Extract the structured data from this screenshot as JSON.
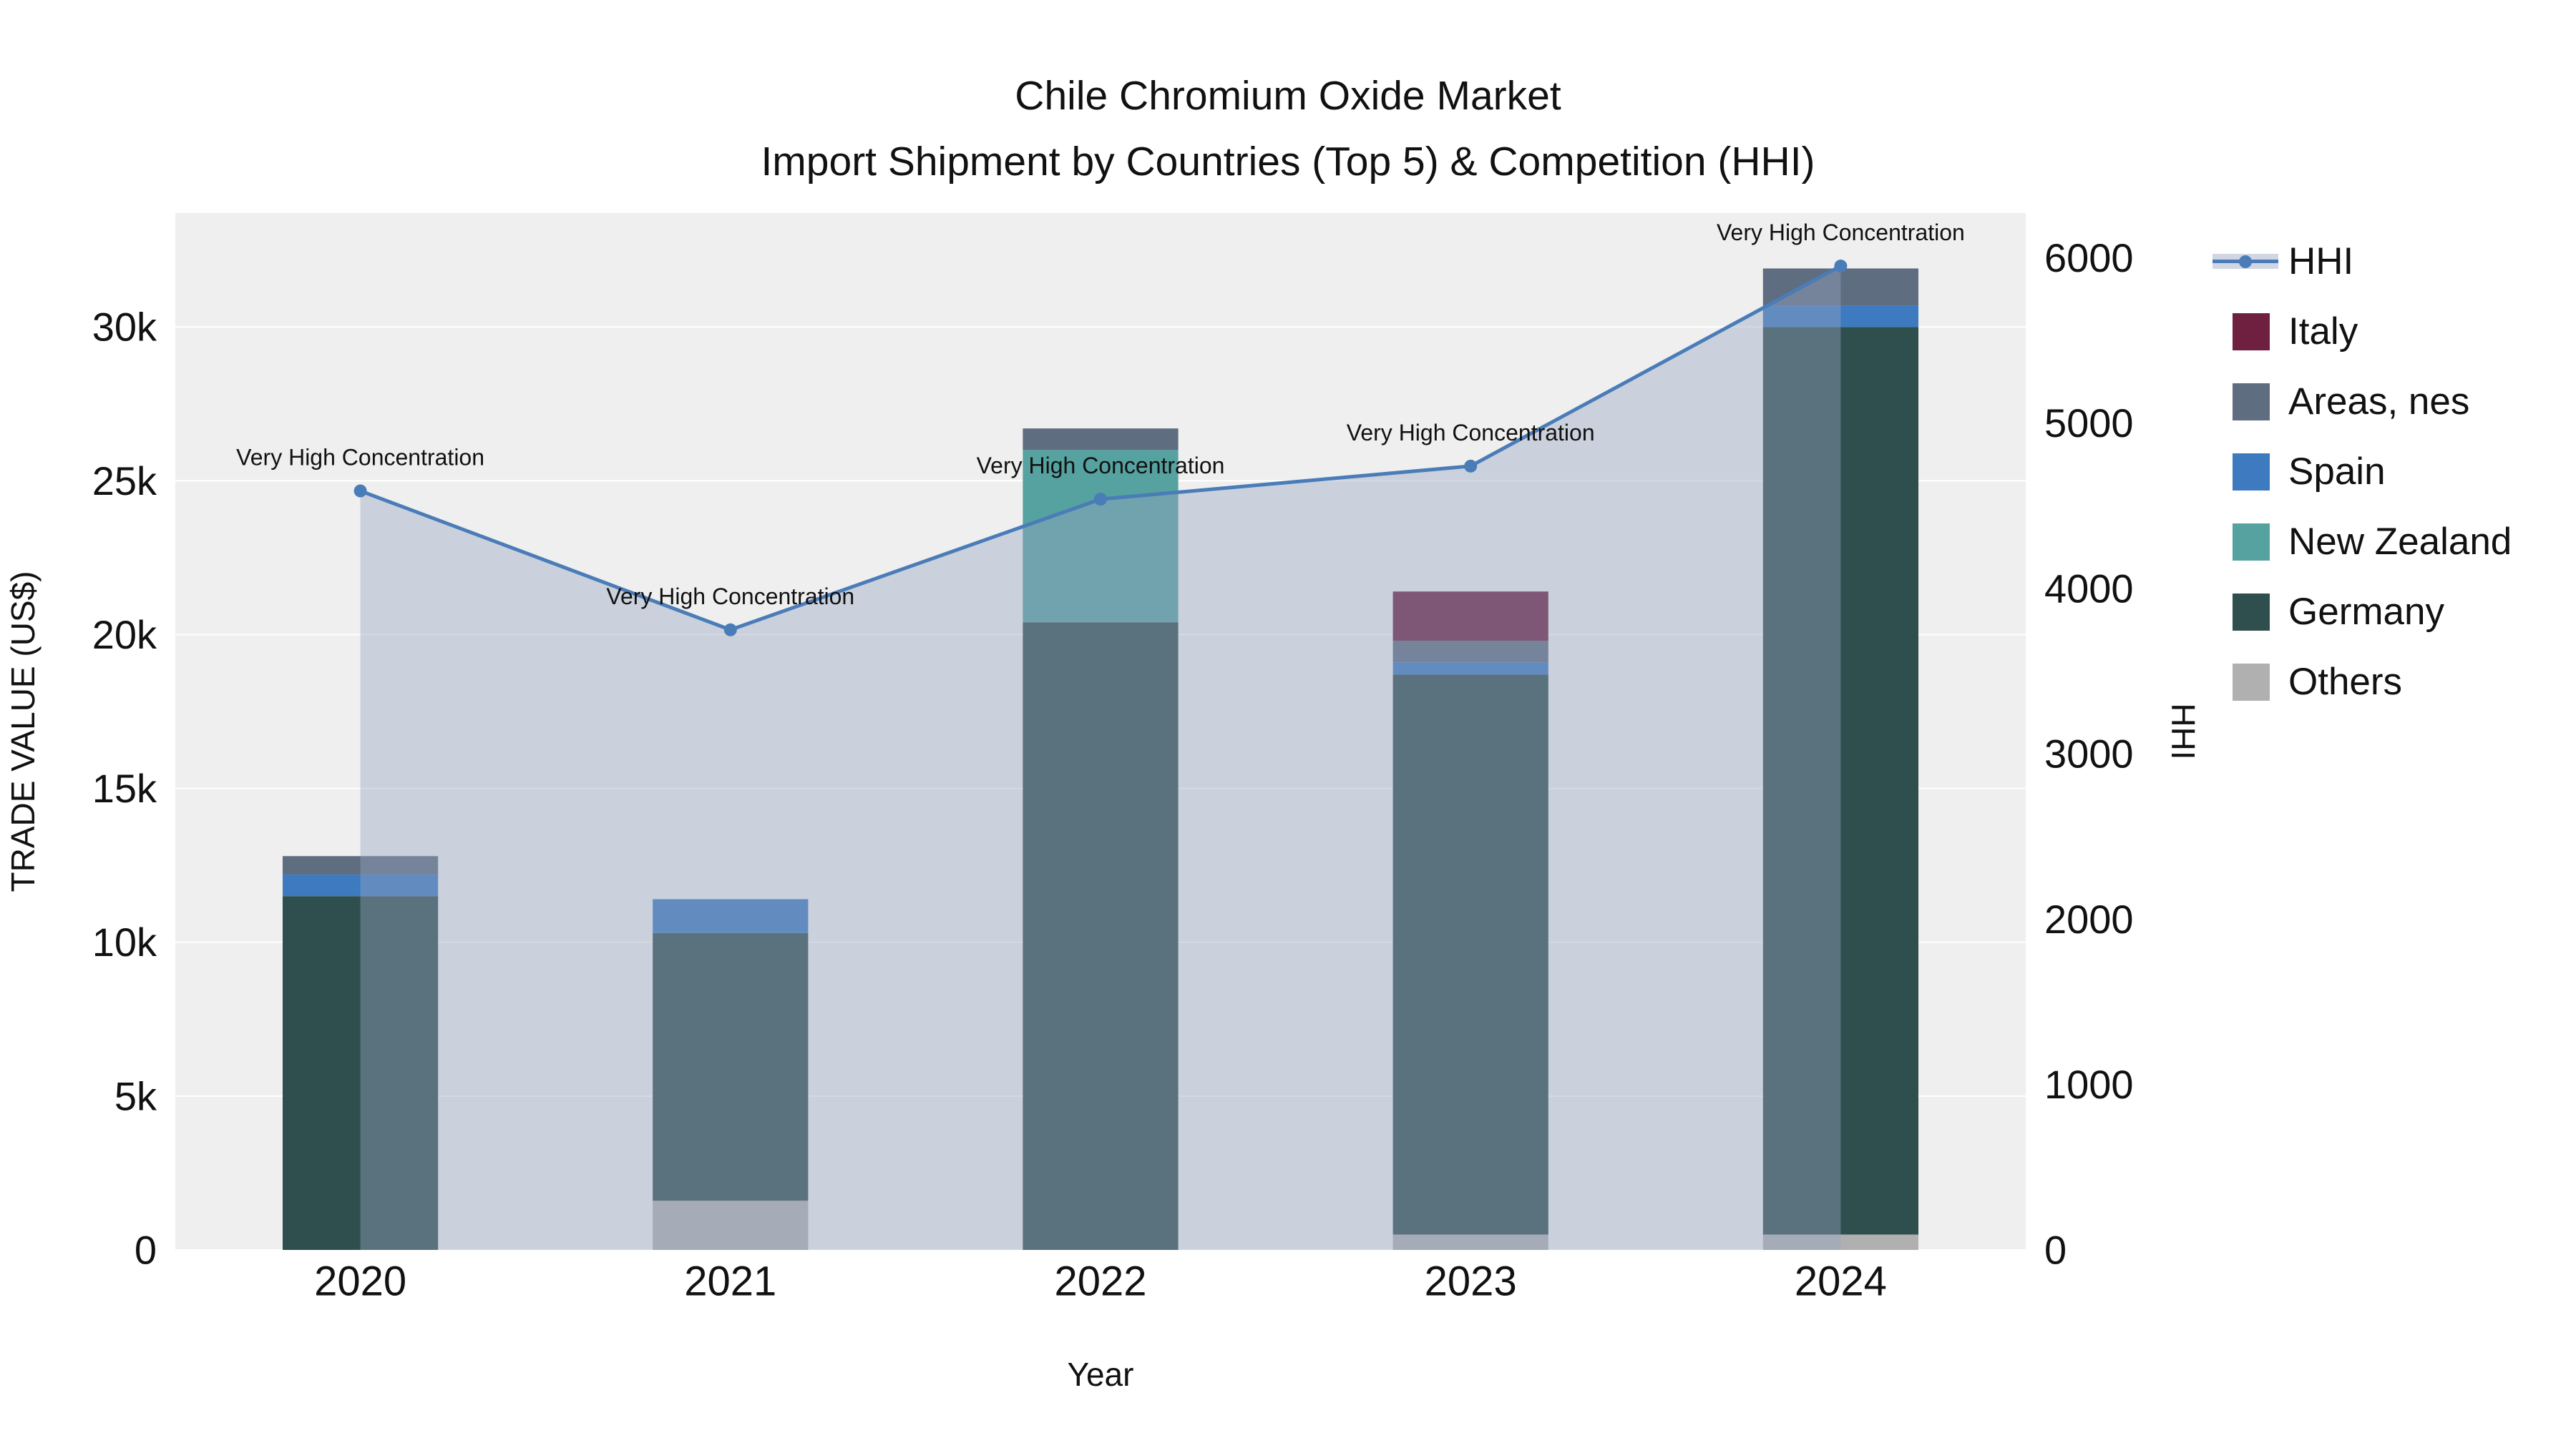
{
  "title": {
    "line1": "Chile Chromium Oxide Market",
    "line2": "Import Shipment by Countries (Top 5) & Competition (HHI)"
  },
  "axes": {
    "x_title": "Year",
    "y_left_title": "TRADE VALUE (US$)",
    "y_right_title": "HHI",
    "y_left_ticks": [
      "0",
      "5k",
      "10k",
      "15k",
      "20k",
      "25k",
      "30k"
    ],
    "y_left_tick_values": [
      0,
      5000,
      10000,
      15000,
      20000,
      25000,
      30000
    ],
    "y_left_max": 33700,
    "y_right_ticks": [
      "0",
      "1000",
      "2000",
      "3000",
      "4000",
      "5000",
      "6000"
    ],
    "y_right_tick_values": [
      0,
      1000,
      2000,
      3000,
      4000,
      5000,
      6000
    ],
    "y_right_max": 6270
  },
  "colors": {
    "plot_background": "#efefef",
    "paper_background": "#ffffff",
    "gridline": "#ffffff",
    "text": "#111111"
  },
  "chart_data": {
    "type": "bar+line",
    "categories": [
      "2020",
      "2021",
      "2022",
      "2023",
      "2024"
    ],
    "bar_series": [
      {
        "name": "Others",
        "color": "#b0b0b0",
        "values": [
          0,
          1600,
          0,
          500,
          500
        ]
      },
      {
        "name": "Germany",
        "color": "#2f4f4f",
        "values": [
          11500,
          8700,
          20400,
          18200,
          29500
        ]
      },
      {
        "name": "New Zealand",
        "color": "#55a2a0",
        "values": [
          0,
          0,
          5600,
          0,
          0
        ]
      },
      {
        "name": "Spain",
        "color": "#3d7ac0",
        "values": [
          700,
          1100,
          0,
          400,
          700
        ]
      },
      {
        "name": "Areas, nes",
        "color": "#5f6d80",
        "values": [
          600,
          0,
          700,
          700,
          1200
        ]
      },
      {
        "name": "Italy",
        "color": "#6f1f40",
        "values": [
          0,
          0,
          0,
          1600,
          0
        ]
      }
    ],
    "bar_totals": [
      12800,
      11400,
      26700,
      21400,
      31900
    ],
    "line_series": {
      "name": "HHI",
      "color": "#4a7cb8",
      "fill": "rgba(150,165,192,0.42)",
      "values": [
        4590,
        3750,
        4540,
        4740,
        5950
      ],
      "annotations": [
        "Very High Concentration",
        "Very High Concentration",
        "Very High Concentration",
        "Very High Concentration",
        "Very High Concentration"
      ]
    }
  },
  "legend": {
    "items": [
      {
        "label": "HHI",
        "type": "line",
        "color": "#4a7cb8",
        "fill": "rgba(150,165,192,0.45)"
      },
      {
        "label": "Italy",
        "type": "square",
        "color": "#6f1f40"
      },
      {
        "label": "Areas, nes",
        "type": "square",
        "color": "#5f6d80"
      },
      {
        "label": "Spain",
        "type": "square",
        "color": "#3d7ac0"
      },
      {
        "label": "New Zealand",
        "type": "square",
        "color": "#55a2a0"
      },
      {
        "label": "Germany",
        "type": "square",
        "color": "#2f4f4f"
      },
      {
        "label": "Others",
        "type": "square",
        "color": "#b0b0b0"
      }
    ]
  }
}
